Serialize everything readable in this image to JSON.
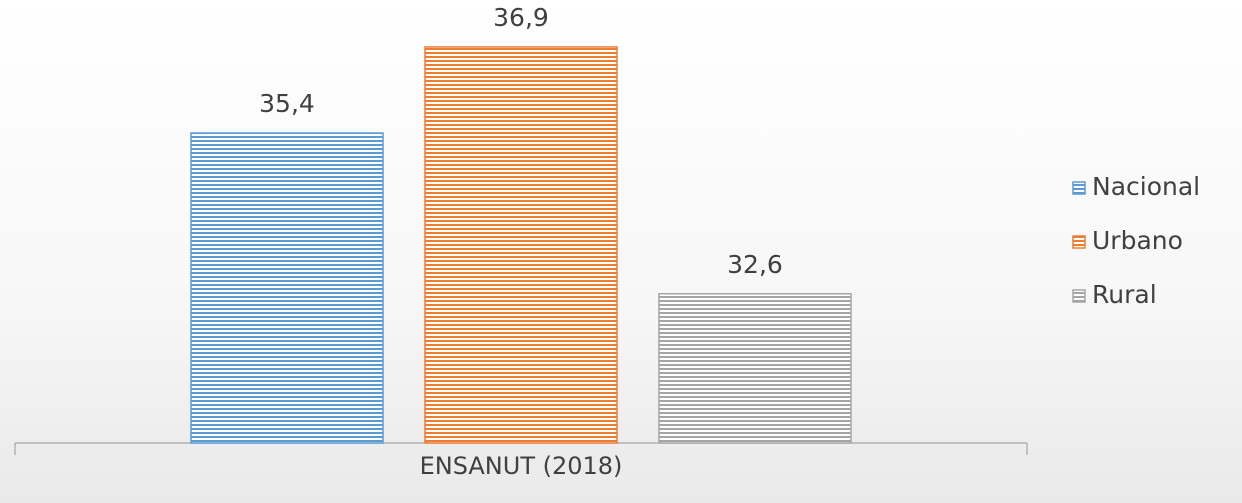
{
  "chart_data": {
    "type": "bar",
    "categories": [
      "ENSANUT (2018)"
    ],
    "series": [
      {
        "name": "Nacional",
        "color": "#5b9bd5",
        "values": [
          35.4
        ],
        "value_labels": [
          "35,4"
        ]
      },
      {
        "name": "Urbano",
        "color": "#ed7d31",
        "values": [
          36.9
        ],
        "value_labels": [
          "36,9"
        ]
      },
      {
        "name": "Rural",
        "color": "#a5a5a5",
        "values": [
          32.6
        ],
        "value_labels": [
          "32,6"
        ]
      }
    ],
    "ylim": [
      30,
      37.5
    ],
    "legend": "right"
  }
}
